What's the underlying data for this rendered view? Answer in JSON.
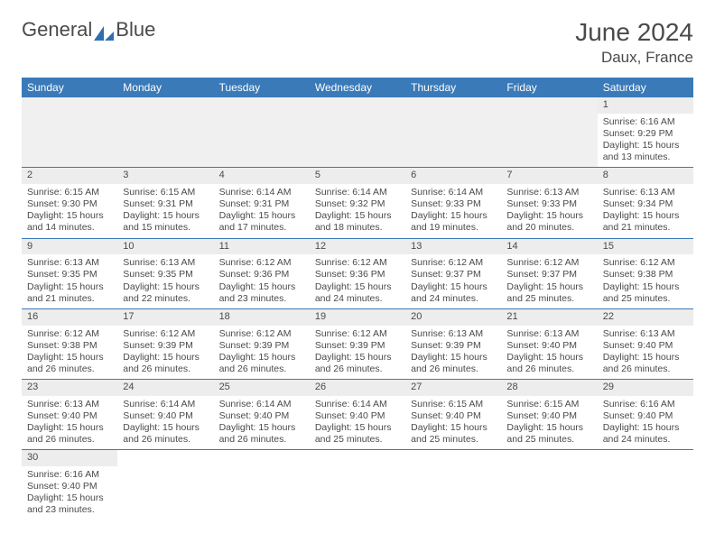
{
  "brand": {
    "text1": "General",
    "text2": "Blue",
    "logo_color": "#2f6fb0"
  },
  "title": "June 2024",
  "location": "Daux, France",
  "header_bg": "#3a7ab8",
  "weekdays": [
    "Sunday",
    "Monday",
    "Tuesday",
    "Wednesday",
    "Thursday",
    "Friday",
    "Saturday"
  ],
  "weeks": [
    [
      null,
      null,
      null,
      null,
      null,
      null,
      {
        "d": "1",
        "sr": "6:16 AM",
        "ss": "9:29 PM",
        "dl": "15 hours and 13 minutes."
      }
    ],
    [
      {
        "d": "2",
        "sr": "6:15 AM",
        "ss": "9:30 PM",
        "dl": "15 hours and 14 minutes."
      },
      {
        "d": "3",
        "sr": "6:15 AM",
        "ss": "9:31 PM",
        "dl": "15 hours and 15 minutes."
      },
      {
        "d": "4",
        "sr": "6:14 AM",
        "ss": "9:31 PM",
        "dl": "15 hours and 17 minutes."
      },
      {
        "d": "5",
        "sr": "6:14 AM",
        "ss": "9:32 PM",
        "dl": "15 hours and 18 minutes."
      },
      {
        "d": "6",
        "sr": "6:14 AM",
        "ss": "9:33 PM",
        "dl": "15 hours and 19 minutes."
      },
      {
        "d": "7",
        "sr": "6:13 AM",
        "ss": "9:33 PM",
        "dl": "15 hours and 20 minutes."
      },
      {
        "d": "8",
        "sr": "6:13 AM",
        "ss": "9:34 PM",
        "dl": "15 hours and 21 minutes."
      }
    ],
    [
      {
        "d": "9",
        "sr": "6:13 AM",
        "ss": "9:35 PM",
        "dl": "15 hours and 21 minutes."
      },
      {
        "d": "10",
        "sr": "6:13 AM",
        "ss": "9:35 PM",
        "dl": "15 hours and 22 minutes."
      },
      {
        "d": "11",
        "sr": "6:12 AM",
        "ss": "9:36 PM",
        "dl": "15 hours and 23 minutes."
      },
      {
        "d": "12",
        "sr": "6:12 AM",
        "ss": "9:36 PM",
        "dl": "15 hours and 24 minutes."
      },
      {
        "d": "13",
        "sr": "6:12 AM",
        "ss": "9:37 PM",
        "dl": "15 hours and 24 minutes."
      },
      {
        "d": "14",
        "sr": "6:12 AM",
        "ss": "9:37 PM",
        "dl": "15 hours and 25 minutes."
      },
      {
        "d": "15",
        "sr": "6:12 AM",
        "ss": "9:38 PM",
        "dl": "15 hours and 25 minutes."
      }
    ],
    [
      {
        "d": "16",
        "sr": "6:12 AM",
        "ss": "9:38 PM",
        "dl": "15 hours and 26 minutes."
      },
      {
        "d": "17",
        "sr": "6:12 AM",
        "ss": "9:39 PM",
        "dl": "15 hours and 26 minutes."
      },
      {
        "d": "18",
        "sr": "6:12 AM",
        "ss": "9:39 PM",
        "dl": "15 hours and 26 minutes."
      },
      {
        "d": "19",
        "sr": "6:12 AM",
        "ss": "9:39 PM",
        "dl": "15 hours and 26 minutes."
      },
      {
        "d": "20",
        "sr": "6:13 AM",
        "ss": "9:39 PM",
        "dl": "15 hours and 26 minutes."
      },
      {
        "d": "21",
        "sr": "6:13 AM",
        "ss": "9:40 PM",
        "dl": "15 hours and 26 minutes."
      },
      {
        "d": "22",
        "sr": "6:13 AM",
        "ss": "9:40 PM",
        "dl": "15 hours and 26 minutes."
      }
    ],
    [
      {
        "d": "23",
        "sr": "6:13 AM",
        "ss": "9:40 PM",
        "dl": "15 hours and 26 minutes."
      },
      {
        "d": "24",
        "sr": "6:14 AM",
        "ss": "9:40 PM",
        "dl": "15 hours and 26 minutes."
      },
      {
        "d": "25",
        "sr": "6:14 AM",
        "ss": "9:40 PM",
        "dl": "15 hours and 26 minutes."
      },
      {
        "d": "26",
        "sr": "6:14 AM",
        "ss": "9:40 PM",
        "dl": "15 hours and 25 minutes."
      },
      {
        "d": "27",
        "sr": "6:15 AM",
        "ss": "9:40 PM",
        "dl": "15 hours and 25 minutes."
      },
      {
        "d": "28",
        "sr": "6:15 AM",
        "ss": "9:40 PM",
        "dl": "15 hours and 25 minutes."
      },
      {
        "d": "29",
        "sr": "6:16 AM",
        "ss": "9:40 PM",
        "dl": "15 hours and 24 minutes."
      }
    ],
    [
      {
        "d": "30",
        "sr": "6:16 AM",
        "ss": "9:40 PM",
        "dl": "15 hours and 23 minutes."
      },
      null,
      null,
      null,
      null,
      null,
      null
    ]
  ],
  "labels": {
    "sunrise": "Sunrise: ",
    "sunset": "Sunset: ",
    "daylight": "Daylight: "
  }
}
